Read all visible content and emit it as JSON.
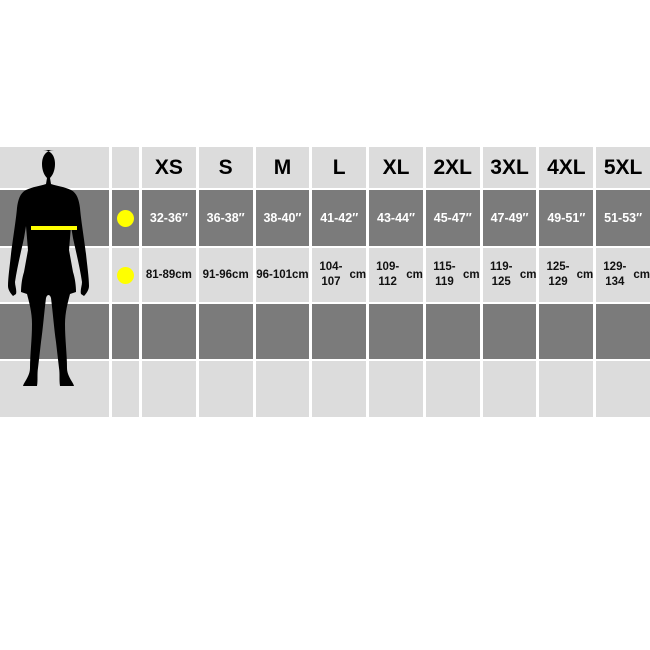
{
  "sizes": [
    "XS",
    "S",
    "M",
    "L",
    "XL",
    "2XL",
    "3XL",
    "4XL",
    "5XL"
  ],
  "chest_inches": [
    "32-36″",
    "36-38″",
    "38-40″",
    "41-42″",
    "43-44″",
    "45-47″",
    "47-49″",
    "49-51″",
    "51-53″"
  ],
  "chest_cm": [
    "81-89",
    "91-96",
    "96-101",
    "104-107",
    "109-112",
    "115-119",
    "119-125",
    "125-129",
    "129-134"
  ],
  "cm_unit": "cm",
  "colors": {
    "marker": "#ffff00",
    "row_dark": "#7b7b7b",
    "row_light": "#dcdcdc"
  },
  "icons": {
    "figure": "human-silhouette-chest-measure-icon",
    "marker": "yellow-dot-icon"
  }
}
